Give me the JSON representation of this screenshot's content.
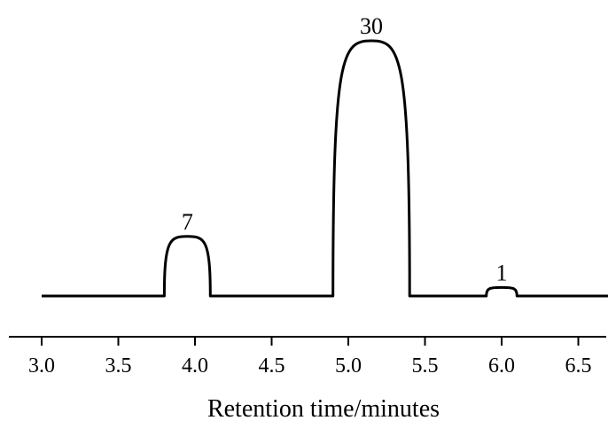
{
  "chart_data": {
    "type": "line",
    "title": "",
    "xlabel": "Retention time/minutes",
    "ylabel": "",
    "xlim": [
      3.0,
      6.7
    ],
    "x_ticks": [
      3.0,
      3.5,
      4.0,
      4.5,
      5.0,
      5.5,
      6.0,
      6.5
    ],
    "x_tick_labels": [
      "3.0",
      "3.5",
      "4.0",
      "4.5",
      "5.0",
      "5.5",
      "6.0",
      "6.5"
    ],
    "baseline_range": [
      3.0,
      6.7
    ],
    "peaks": [
      {
        "label": "7",
        "start": 3.8,
        "center": 3.95,
        "end": 4.1,
        "height": 7
      },
      {
        "label": "30",
        "start": 4.9,
        "center": 5.15,
        "end": 5.4,
        "height": 30
      },
      {
        "label": "1",
        "start": 5.9,
        "center": 6.0,
        "end": 6.1,
        "height": 1
      }
    ],
    "grid": false,
    "legend": "none"
  }
}
